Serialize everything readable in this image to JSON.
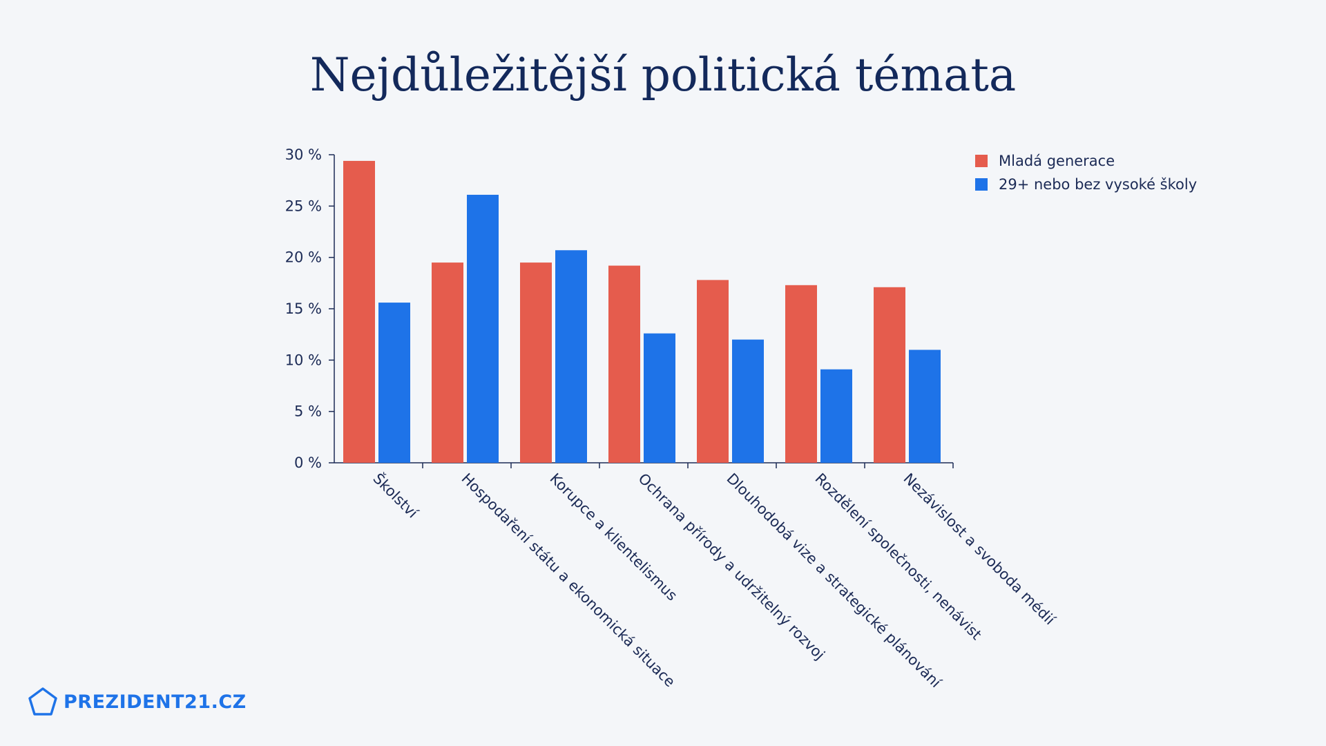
{
  "chart_data": {
    "type": "bar",
    "title": "Nejdůležitější politická témata",
    "categories": [
      "Školství",
      "Hospodaření státu a ekonomická situace",
      "Korupce a klientelismus",
      "Ochrana přírody a udržitelný rozvoj",
      "Dlouhodobá vize a strategické plánování",
      "Rozdělení společnosti, nenávist",
      "Nezávislost a svoboda médií"
    ],
    "series": [
      {
        "name": "Mladá generace",
        "color": "#e55c4d",
        "values": [
          29.4,
          19.5,
          19.5,
          19.2,
          17.8,
          17.3,
          17.1
        ]
      },
      {
        "name": "29+ nebo bez vysoké školy",
        "color": "#1e73e8",
        "values": [
          15.6,
          26.1,
          20.7,
          12.6,
          12.0,
          9.1,
          11.0
        ]
      }
    ],
    "yticks": [
      "0 %",
      "5 %",
      "10 %",
      "15 %",
      "20 %",
      "25 %",
      "30 %"
    ],
    "ylim": [
      0,
      30
    ],
    "xlabel": "",
    "ylabel": "",
    "legend_position": "top-right"
  },
  "brand": {
    "name": "PREZIDENT21.CZ",
    "icon": "pentagon-icon",
    "color": "#1e73e8"
  }
}
